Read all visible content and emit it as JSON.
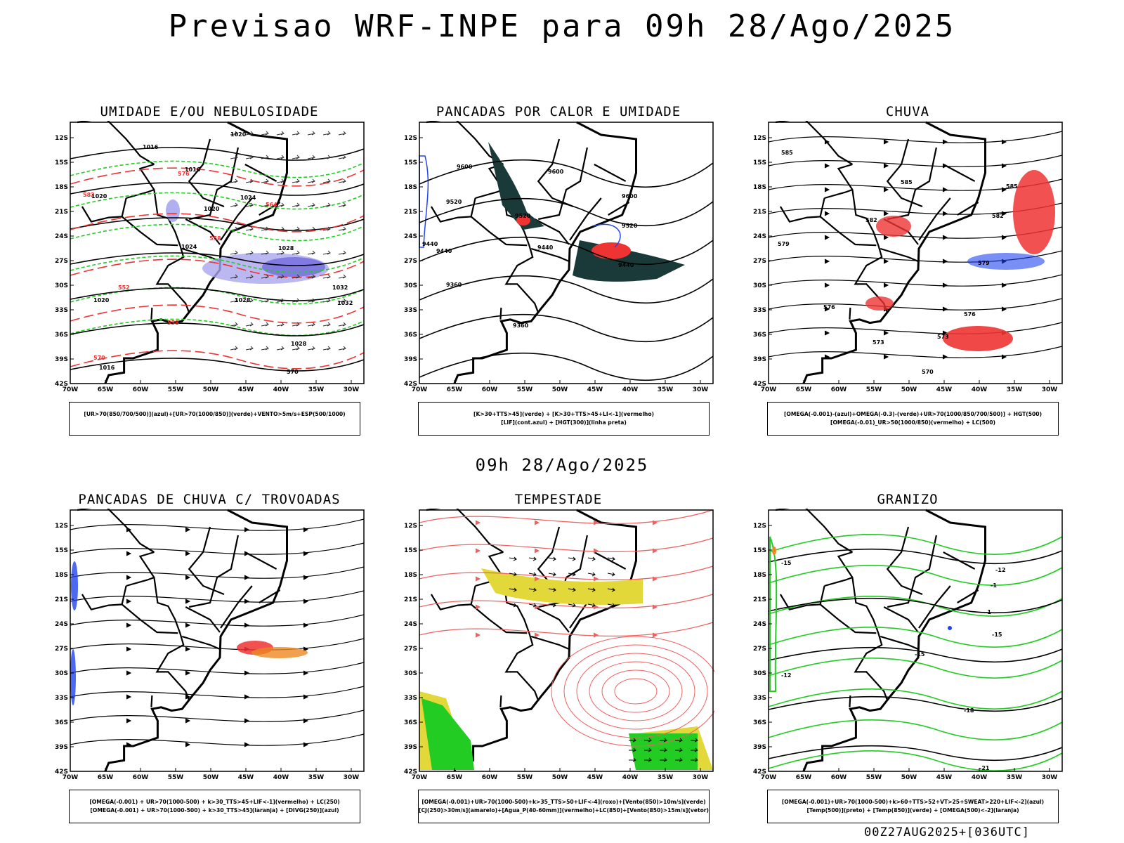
{
  "main_title": "Previsao WRF-INPE  para 09h 28/Ago/2025",
  "mid_title": "09h 28/Ago/2025",
  "run_stamp": "00Z27AUG2025+[036UTC]",
  "axes": {
    "lat_labels": [
      "12S",
      "15S",
      "18S",
      "21S",
      "24S",
      "27S",
      "30S",
      "33S",
      "36S",
      "39S",
      "42S"
    ],
    "lon_labels": [
      "70W",
      "65W",
      "60W",
      "55W",
      "50W",
      "45W",
      "40W",
      "35W",
      "30W"
    ]
  },
  "colors": {
    "black": "#000000",
    "green": "#22cc22",
    "red": "#ee3333",
    "blue": "#2244ee",
    "lavender": "#aaa6ee",
    "dark_teal": "#1a3a3a",
    "yellow": "#e3d83a",
    "orange": "#ee8822",
    "salmon": "#f06060"
  },
  "panels": [
    {
      "id": "umidade",
      "title": "UMIDADE E/OU NEBULOSIDADE",
      "legend": [
        "[UR>70(850/700/500)](azul)+[UR>70(1000/850)](verde)+VENTO>5m/s+ESP(500/1000)"
      ],
      "contour_labels": [
        "1016",
        "1020",
        "1016",
        "1024",
        "1020",
        "1024",
        "1028",
        "1020",
        "1032",
        "1028",
        "1032",
        "1020",
        "1016",
        "1028",
        "570",
        "576",
        "582",
        "564",
        "558",
        "552",
        "558",
        "570"
      ]
    },
    {
      "id": "pancadas_calor",
      "title": "PANCADAS POR CALOR E UMIDADE",
      "legend": [
        "[K>30+TTS>45](verde) + [K>30+TTS>45+LI<-1](vermelho)",
        "[LIF](cont.azul) + [HGT(300)](linha preta)"
      ],
      "contour_labels": [
        "9600",
        "9600",
        "9520",
        "9520",
        "9520",
        "9440",
        "9440",
        "9440",
        "9600",
        "9440",
        "9360",
        "9360"
      ]
    },
    {
      "id": "chuva",
      "title": "CHUVA",
      "legend": [
        "[OMEGA(-0.001)-(azul)+OMEGA(-0.3)-(verde)+UR>70(1000/850/700/500)] + HGT(500)",
        "[OMEGA(-0.01)_UR>50(1000/850)(vermelho) + LC(500)"
      ],
      "contour_labels": [
        "585",
        "585",
        "585",
        "582",
        "582",
        "579",
        "576",
        "576",
        "573",
        "573",
        "570",
        "579"
      ]
    },
    {
      "id": "pancadas_trovoadas",
      "title": "PANCADAS DE CHUVA C/ TROVOADAS",
      "legend": [
        "[OMEGA(-0.001) + UR>70(1000-500) + k>30_TTS>45+LIF<-1](vermelho) + LC(250)",
        "[OMEGA(-0.001) + UR>70(1000-500) + k>30_TTS>45](laranja) + [DIVG(250)](azul)"
      ],
      "contour_labels": []
    },
    {
      "id": "tempestade",
      "title": "TEMPESTADE",
      "legend": [
        "[OMEGA(-0.001)+UR>70(1000-500)+k>35_TTS>50+LIF<-4](roxo)+[Vento(850)>10m/s](verde)",
        "[CJ(250)>30m/s](amarelo)+[Agua_P(40-60mm)](vermelho)+LC(850)+[Vento(850)>15m/s](vetor)"
      ],
      "contour_labels": []
    },
    {
      "id": "granizo",
      "title": "GRANIZO",
      "legend": [
        "[OMEGA(-0.001)+UR>70(1000-500)+k>60+TTS>52+VT>25+SWEAT>220+LIF<-2](azul)",
        "[Temp(500)](preto) + [Temp(850)](verde) + [OMEGA(500)<-2](laranja)"
      ],
      "contour_labels": [
        "-1",
        "-1",
        "-15",
        "-15",
        "-18",
        "-12",
        "-21",
        "-12",
        "-15"
      ]
    }
  ]
}
